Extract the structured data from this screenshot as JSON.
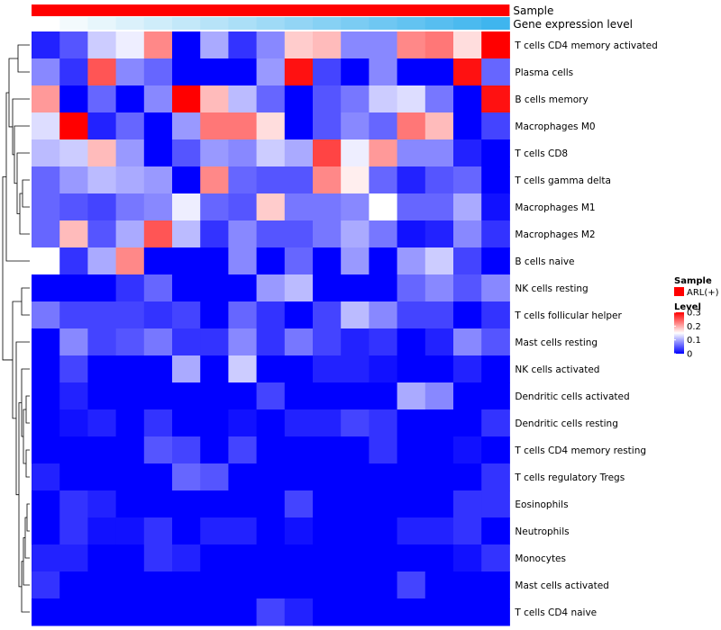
{
  "chart_data": {
    "type": "heatmap",
    "rows": [
      "T cells CD4 memory activated",
      "Plasma cells",
      "B cells memory",
      "Macrophages M0",
      "T cells CD8",
      "T cells gamma delta",
      "Macrophages M1",
      "Macrophages M2",
      "B cells naive",
      "NK cells resting",
      "T cells follicular helper",
      "Mast cells resting",
      "NK cells activated",
      "Dendritic cells activated",
      "Dendritic cells resting",
      "T cells CD4 memory resting",
      "T cells regulatory  Tregs",
      "Eosinophils",
      "Neutrophils",
      "Monocytes",
      "Mast cells activated",
      "T cells CD4 naive"
    ],
    "values": [
      [
        0.02,
        0.05,
        0.12,
        0.14,
        0.22,
        0.0,
        0.1,
        0.03,
        0.08,
        0.18,
        0.19,
        0.08,
        0.08,
        0.22,
        0.23,
        0.17,
        0.3
      ],
      [
        0.08,
        0.03,
        0.25,
        0.08,
        0.06,
        0.0,
        0.0,
        0.0,
        0.09,
        0.29,
        0.04,
        0.0,
        0.08,
        0.0,
        0.0,
        0.29,
        0.06
      ],
      [
        0.21,
        0.0,
        0.06,
        0.0,
        0.08,
        0.3,
        0.19,
        0.11,
        0.06,
        0.0,
        0.05,
        0.07,
        0.12,
        0.13,
        0.07,
        0.0,
        0.29
      ],
      [
        0.13,
        0.3,
        0.02,
        0.06,
        0.0,
        0.09,
        0.23,
        0.23,
        0.17,
        0.0,
        0.05,
        0.08,
        0.06,
        0.23,
        0.19,
        0.0,
        0.04
      ],
      [
        0.11,
        0.12,
        0.19,
        0.09,
        0.0,
        0.05,
        0.09,
        0.08,
        0.12,
        0.1,
        0.26,
        0.14,
        0.21,
        0.08,
        0.08,
        0.02,
        0.0
      ],
      [
        0.06,
        0.09,
        0.11,
        0.1,
        0.09,
        0.0,
        0.22,
        0.06,
        0.05,
        0.05,
        0.22,
        0.16,
        0.06,
        0.02,
        0.05,
        0.06,
        0.0
      ],
      [
        0.06,
        0.05,
        0.04,
        0.07,
        0.08,
        0.14,
        0.06,
        0.05,
        0.18,
        0.07,
        0.07,
        0.08,
        0.15,
        0.06,
        0.06,
        0.1,
        0.01
      ],
      [
        0.06,
        0.19,
        0.05,
        0.1,
        0.25,
        0.11,
        0.03,
        0.08,
        0.05,
        0.05,
        0.07,
        0.1,
        0.07,
        0.01,
        0.02,
        0.08,
        0.03
      ],
      [
        0.15,
        0.03,
        0.1,
        0.22,
        0.0,
        0.0,
        0.0,
        0.08,
        0.0,
        0.06,
        0.0,
        0.09,
        0.0,
        0.09,
        0.12,
        0.04,
        0.0
      ],
      [
        0.0,
        0.0,
        0.0,
        0.03,
        0.06,
        0.0,
        0.0,
        0.0,
        0.09,
        0.11,
        0.0,
        0.0,
        0.0,
        0.06,
        0.08,
        0.05,
        0.08
      ],
      [
        0.07,
        0.04,
        0.04,
        0.04,
        0.03,
        0.04,
        0.0,
        0.06,
        0.03,
        0.0,
        0.04,
        0.11,
        0.08,
        0.04,
        0.04,
        0.0,
        0.03
      ],
      [
        0.0,
        0.08,
        0.04,
        0.05,
        0.07,
        0.03,
        0.03,
        0.08,
        0.03,
        0.07,
        0.04,
        0.02,
        0.03,
        0.0,
        0.02,
        0.08,
        0.05
      ],
      [
        0.0,
        0.04,
        0.0,
        0.0,
        0.0,
        0.1,
        0.0,
        0.12,
        0.0,
        0.0,
        0.02,
        0.02,
        0.01,
        0.0,
        0.0,
        0.02,
        0.0
      ],
      [
        0.0,
        0.02,
        0.0,
        0.0,
        0.0,
        0.0,
        0.0,
        0.0,
        0.04,
        0.0,
        0.0,
        0.0,
        0.0,
        0.1,
        0.08,
        0.0,
        0.0
      ],
      [
        0.0,
        0.01,
        0.02,
        0.0,
        0.03,
        0.0,
        0.0,
        0.01,
        0.0,
        0.02,
        0.02,
        0.04,
        0.03,
        0.0,
        0.0,
        0.0,
        0.03
      ],
      [
        0.0,
        0.0,
        0.0,
        0.0,
        0.05,
        0.04,
        0.0,
        0.04,
        0.0,
        0.0,
        0.0,
        0.0,
        0.03,
        0.0,
        0.0,
        0.01,
        0.0
      ],
      [
        0.02,
        0.0,
        0.0,
        0.0,
        0.0,
        0.06,
        0.05,
        0.0,
        0.0,
        0.0,
        0.0,
        0.0,
        0.0,
        0.0,
        0.0,
        0.0,
        0.03
      ],
      [
        0.0,
        0.03,
        0.02,
        0.0,
        0.0,
        0.0,
        0.0,
        0.0,
        0.0,
        0.04,
        0.0,
        0.0,
        0.0,
        0.0,
        0.0,
        0.03,
        0.03
      ],
      [
        0.0,
        0.03,
        0.01,
        0.01,
        0.03,
        0.0,
        0.02,
        0.02,
        0.0,
        0.01,
        0.0,
        0.0,
        0.0,
        0.02,
        0.02,
        0.03,
        0.0
      ],
      [
        0.02,
        0.02,
        0.0,
        0.0,
        0.03,
        0.02,
        0.0,
        0.0,
        0.0,
        0.0,
        0.0,
        0.0,
        0.0,
        0.0,
        0.0,
        0.01,
        0.03
      ],
      [
        0.03,
        0.0,
        0.0,
        0.0,
        0.0,
        0.0,
        0.0,
        0.0,
        0.0,
        0.0,
        0.0,
        0.0,
        0.0,
        0.04,
        0.0,
        0.0,
        0.0
      ],
      [
        0.0,
        0.0,
        0.0,
        0.0,
        0.0,
        0.0,
        0.0,
        0.0,
        0.04,
        0.02,
        0.0,
        0.0,
        0.0,
        0.0,
        0.0,
        0.0,
        0.0
      ]
    ],
    "n_columns": 17,
    "annotations": [
      {
        "label": "Sample",
        "color": "#ff0000"
      },
      {
        "label": "Gene expression level",
        "colors": [
          "#ffffff",
          "#f3fafd",
          "#e7f6fc",
          "#dbf1fb",
          "#cfedfa",
          "#c3e8f9",
          "#b7e3f8",
          "#abdff7",
          "#9fdaf6",
          "#93d5f5",
          "#87d1f4",
          "#7bccf3",
          "#6fc7f2",
          "#63c3f1",
          "#57bef0",
          "#4bbaef",
          "#3fb5ee"
        ]
      }
    ],
    "color_scale": {
      "min": 0,
      "mid": 0.15,
      "max": 0.3,
      "low": "#0000ff",
      "mid_color": "#ffffff",
      "high": "#ff0000"
    },
    "legend": {
      "sample_title": "Sample",
      "sample_entry": "ARL(+)",
      "sample_color": "#ff0000",
      "level_title": "Level",
      "level_ticks": [
        {
          "value": 0.3,
          "label": "0.3"
        },
        {
          "value": 0.2,
          "label": "0.2"
        },
        {
          "value": 0.1,
          "label": "0.1"
        },
        {
          "value": 0,
          "label": "0"
        }
      ],
      "placement": "right"
    },
    "dendrogram": "rows",
    "title": "",
    "xlabel": "",
    "ylabel": ""
  }
}
